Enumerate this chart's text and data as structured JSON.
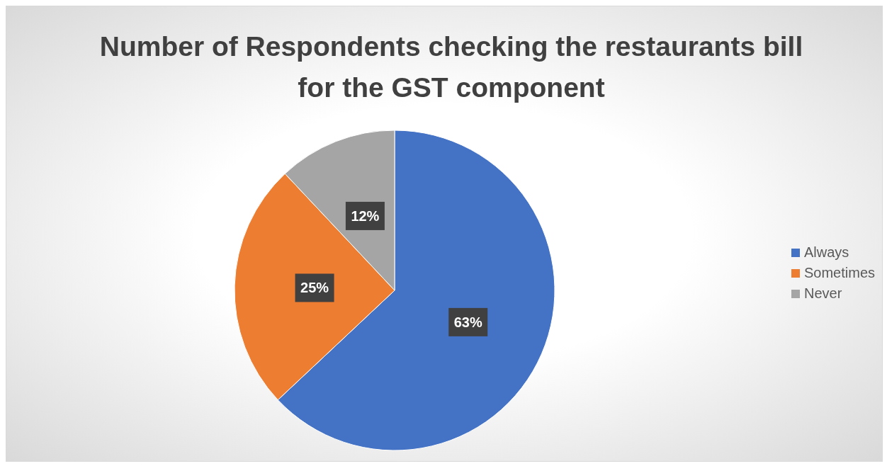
{
  "chart_data": {
    "type": "pie",
    "title": "Number of Respondents checking the restaurants bill for the GST component",
    "categories": [
      "Always",
      "Sometimes",
      "Never"
    ],
    "values": [
      63,
      25,
      12
    ],
    "colors": [
      "#4472c4",
      "#ed7d31",
      "#a5a5a5"
    ],
    "value_labels": [
      "63%",
      "25%",
      "12%"
    ],
    "legend": "right"
  }
}
